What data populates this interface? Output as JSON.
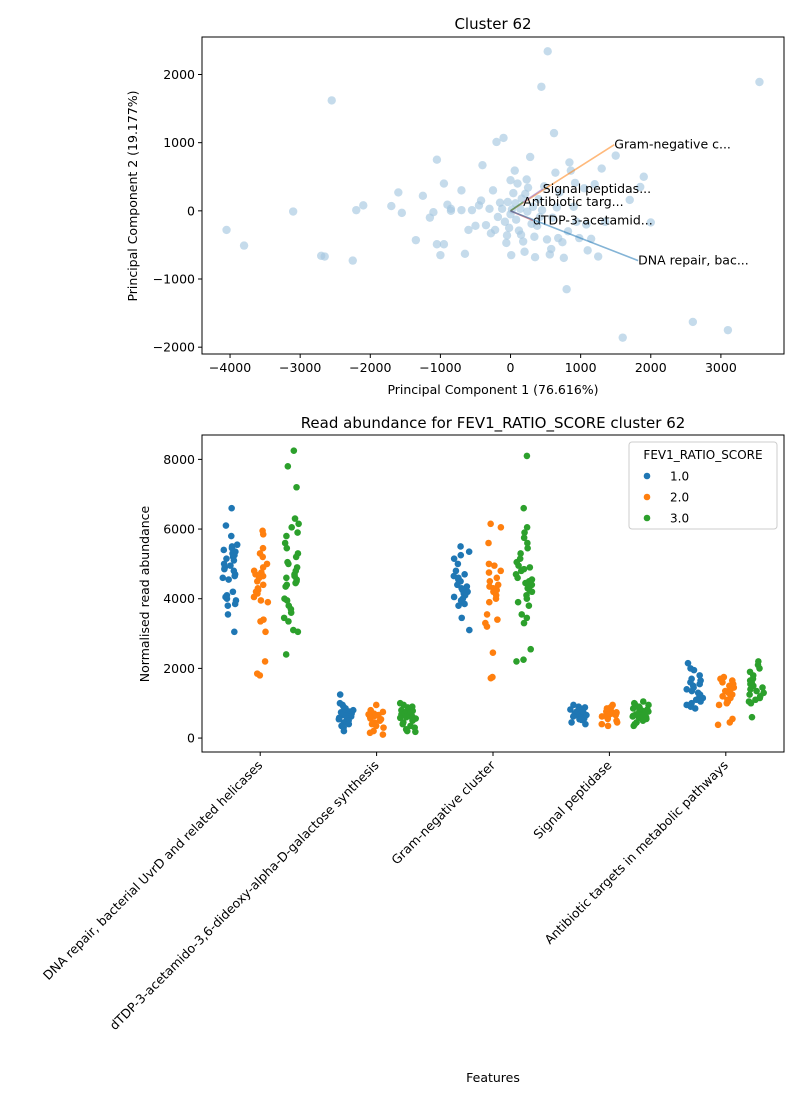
{
  "chart_data": [
    {
      "type": "scatter",
      "title": "Cluster 62",
      "xlabel": "Principal Component 1 (76.616%)",
      "ylabel": "Principal Component 2 (19.177%)",
      "xlim": [
        -4400,
        3900
      ],
      "ylim": [
        -2100,
        2550
      ],
      "xticks": [
        -4000,
        -3000,
        -2000,
        -1000,
        0,
        1000,
        2000,
        3000
      ],
      "yticks": [
        -2000,
        -1000,
        0,
        1000,
        2000
      ],
      "grid": false,
      "point_color": "#a6c8e0",
      "points": [
        [
          -4050,
          -280
        ],
        [
          -3800,
          -510
        ],
        [
          -3100,
          -10
        ],
        [
          -2700,
          -660
        ],
        [
          -2650,
          -670
        ],
        [
          -2550,
          1620
        ],
        [
          -2250,
          -730
        ],
        [
          -2200,
          10
        ],
        [
          -2100,
          80
        ],
        [
          -1700,
          70
        ],
        [
          -1600,
          270
        ],
        [
          -1550,
          -30
        ],
        [
          -1350,
          -430
        ],
        [
          -1250,
          220
        ],
        [
          -1150,
          -100
        ],
        [
          -1100,
          -20
        ],
        [
          -1050,
          750
        ],
        [
          -1050,
          -490
        ],
        [
          -1000,
          -650
        ],
        [
          -950,
          -490
        ],
        [
          -950,
          400
        ],
        [
          -900,
          90
        ],
        [
          -850,
          30
        ],
        [
          -850,
          0
        ],
        [
          -700,
          10
        ],
        [
          -700,
          300
        ],
        [
          -650,
          -630
        ],
        [
          -600,
          -280
        ],
        [
          -550,
          10
        ],
        [
          -500,
          -220
        ],
        [
          -450,
          80
        ],
        [
          -420,
          150
        ],
        [
          -400,
          670
        ],
        [
          -350,
          -210
        ],
        [
          -300,
          30
        ],
        [
          -280,
          -330
        ],
        [
          -250,
          300
        ],
        [
          -220,
          -280
        ],
        [
          -200,
          1010
        ],
        [
          -180,
          -90
        ],
        [
          -150,
          120
        ],
        [
          -120,
          30
        ],
        [
          -100,
          1070
        ],
        [
          -80,
          -160
        ],
        [
          -60,
          -470
        ],
        [
          -50,
          -360
        ],
        [
          -40,
          130
        ],
        [
          -20,
          -250
        ],
        [
          0,
          450
        ],
        [
          0,
          -50
        ],
        [
          10,
          -650
        ],
        [
          20,
          20
        ],
        [
          40,
          260
        ],
        [
          60,
          590
        ],
        [
          70,
          110
        ],
        [
          80,
          -130
        ],
        [
          100,
          400
        ],
        [
          120,
          -290
        ],
        [
          140,
          30
        ],
        [
          150,
          -350
        ],
        [
          160,
          180
        ],
        [
          180,
          -450
        ],
        [
          200,
          -600
        ],
        [
          210,
          250
        ],
        [
          230,
          460
        ],
        [
          240,
          -10
        ],
        [
          250,
          340
        ],
        [
          280,
          790
        ],
        [
          300,
          -190
        ],
        [
          320,
          60
        ],
        [
          340,
          -380
        ],
        [
          350,
          -680
        ],
        [
          380,
          -220
        ],
        [
          400,
          170
        ],
        [
          420,
          -90
        ],
        [
          440,
          1820
        ],
        [
          450,
          10
        ],
        [
          480,
          360
        ],
        [
          520,
          -420
        ],
        [
          530,
          2340
        ],
        [
          560,
          -640
        ],
        [
          580,
          -560
        ],
        [
          600,
          -100
        ],
        [
          620,
          1140
        ],
        [
          640,
          560
        ],
        [
          660,
          50
        ],
        [
          680,
          -400
        ],
        [
          700,
          270
        ],
        [
          740,
          -460
        ],
        [
          760,
          -690
        ],
        [
          800,
          -1150
        ],
        [
          820,
          -300
        ],
        [
          840,
          710
        ],
        [
          860,
          590
        ],
        [
          900,
          60
        ],
        [
          920,
          410
        ],
        [
          940,
          -160
        ],
        [
          980,
          -400
        ],
        [
          1050,
          330
        ],
        [
          1080,
          -200
        ],
        [
          1100,
          -580
        ],
        [
          1150,
          -410
        ],
        [
          1200,
          390
        ],
        [
          1250,
          -670
        ],
        [
          1300,
          620
        ],
        [
          1350,
          -160
        ],
        [
          1500,
          810
        ],
        [
          1600,
          -1860
        ],
        [
          1700,
          160
        ],
        [
          1850,
          350
        ],
        [
          1900,
          500
        ],
        [
          2000,
          -170
        ],
        [
          2600,
          -1630
        ],
        [
          3100,
          -1750
        ],
        [
          3550,
          1890
        ]
      ],
      "arrows": [
        {
          "label": "Gram-negative c...",
          "x": 1480,
          "y": 970,
          "color": "#ff7f0e"
        },
        {
          "label": "Signal peptidas...",
          "x": 460,
          "y": 320,
          "color": "#9467bd"
        },
        {
          "label": "Antibiotic targ...",
          "x": 180,
          "y": 130,
          "color": "#2ca02c"
        },
        {
          "label": "dTDP-3-acetamid...",
          "x": 320,
          "y": -140,
          "color": "#d62728"
        },
        {
          "label": "DNA repair, bac...",
          "x": 1820,
          "y": -730,
          "color": "#1f77b4"
        }
      ]
    },
    {
      "type": "strip",
      "title": "Read abundance for FEV1_RATIO_SCORE cluster 62",
      "xlabel": "Features",
      "ylabel": "Normalised read abundance",
      "ylim": [
        -400,
        8700
      ],
      "yticks": [
        0,
        2000,
        4000,
        6000,
        8000
      ],
      "grid": false,
      "categories": [
        "DNA repair, bacterial UvrD and related helicases",
        "dTDP-3-acetamido-3,6-dideoxy-alpha-D-galactose synthesis",
        "Gram-negative cluster",
        "Signal peptidase",
        "Antibiotic targets in metabolic pathways"
      ],
      "legend": {
        "title": "FEV1_RATIO_SCORE",
        "position": "upper right"
      },
      "series": [
        {
          "name": "1.0",
          "color": "#1f77b4",
          "values": [
            [
              6600,
              6100,
              5800,
              5550,
              5500,
              5450,
              5400,
              5350,
              5300,
              5250,
              5200,
              5150,
              5100,
              5000,
              4950,
              4900,
              4850,
              4800,
              4700,
              4650,
              4600,
              4550,
              4200,
              4100,
              4050,
              4000,
              3950,
              3850,
              3800,
              3550,
              3050
            ],
            [
              1250,
              1000,
              950,
              900,
              850,
              800,
              780,
              760,
              740,
              720,
              700,
              680,
              660,
              640,
              620,
              600,
              580,
              560,
              540,
              500,
              450,
              400,
              350,
              300,
              200
            ],
            [
              5500,
              5350,
              5250,
              5150,
              5000,
              4800,
              4700,
              4650,
              4600,
              4550,
              4500,
              4400,
              4350,
              4300,
              4250,
              4200,
              4150,
              4100,
              4050,
              4000,
              3950,
              3900,
              3850,
              3800,
              3450,
              3100
            ],
            [
              950,
              900,
              880,
              850,
              820,
              800,
              780,
              760,
              740,
              720,
              700,
              680,
              660,
              640,
              620,
              600,
              580,
              560,
              540,
              520,
              450,
              400
            ],
            [
              2150,
              2000,
              1950,
              1800,
              1700,
              1650,
              1600,
              1550,
              1500,
              1450,
              1400,
              1350,
              1300,
              1250,
              1200,
              1150,
              1100,
              1050,
              1000,
              950,
              900,
              850
            ]
          ]
        },
        {
          "name": "2.0",
          "color": "#ff7f0e",
          "values": [
            [
              5950,
              5850,
              5450,
              5300,
              5200,
              5000,
              4900,
              4800,
              4750,
              4700,
              4650,
              4600,
              4500,
              4400,
              4300,
              4250,
              4200,
              4150,
              4050,
              3950,
              3900,
              3400,
              3350,
              3050,
              2200,
              1850,
              1800
            ],
            [
              950,
              800,
              750,
              700,
              680,
              660,
              640,
              620,
              600,
              580,
              560,
              540,
              520,
              500,
              450,
              400,
              350,
              300,
              200,
              150,
              100
            ],
            [
              6150,
              6050,
              5600,
              5000,
              4950,
              4800,
              4750,
              4600,
              4500,
              4400,
              4350,
              4300,
              4250,
              4200,
              4100,
              4000,
              3900,
              3550,
              3400,
              3300,
              3200,
              2450,
              1750,
              1720
            ],
            [
              950,
              900,
              880,
              850,
              820,
              800,
              780,
              760,
              740,
              720,
              700,
              680,
              660,
              640,
              620,
              600,
              550,
              500,
              450,
              400,
              350
            ],
            [
              1750,
              1700,
              1650,
              1600,
              1550,
              1500,
              1450,
              1400,
              1350,
              1300,
              1250,
              1200,
              1150,
              1100,
              1050,
              1000,
              950,
              550,
              450,
              380
            ]
          ]
        },
        {
          "name": "3.0",
          "color": "#2ca02c",
          "values": [
            [
              8250,
              7800,
              7200,
              6300,
              6150,
              6050,
              5900,
              5800,
              5600,
              5450,
              5300,
              5200,
              5050,
              5000,
              4900,
              4800,
              4700,
              4650,
              4600,
              4550,
              4500,
              4450,
              4400,
              4350,
              4000,
              3950,
              3800,
              3700,
              3600,
              3450,
              3350,
              3100,
              3050,
              2400
            ],
            [
              1000,
              950,
              900,
              880,
              850,
              820,
              800,
              780,
              760,
              740,
              720,
              700,
              680,
              660,
              640,
              620,
              600,
              580,
              560,
              540,
              500,
              450,
              400,
              350,
              300,
              250,
              200,
              180
            ],
            [
              8100,
              6600,
              6050,
              5900,
              5750,
              5600,
              5450,
              5300,
              5150,
              5050,
              4950,
              4900,
              4850,
              4800,
              4700,
              4600,
              4550,
              4500,
              4450,
              4400,
              4350,
              4300,
              4250,
              4200,
              4100,
              4000,
              3900,
              3800,
              3550,
              3450,
              3300,
              2550,
              2250,
              2200
            ],
            [
              1050,
              1000,
              980,
              950,
              900,
              880,
              850,
              820,
              800,
              780,
              760,
              740,
              720,
              700,
              680,
              660,
              640,
              620,
              600,
              580,
              550,
              500,
              450,
              400,
              350
            ],
            [
              2200,
              2100,
              2000,
              1900,
              1800,
              1700,
              1650,
              1600,
              1550,
              1500,
              1450,
              1400,
              1350,
              1300,
              1250,
              1200,
              1150,
              1100,
              1050,
              1000,
              600
            ]
          ]
        }
      ]
    }
  ]
}
